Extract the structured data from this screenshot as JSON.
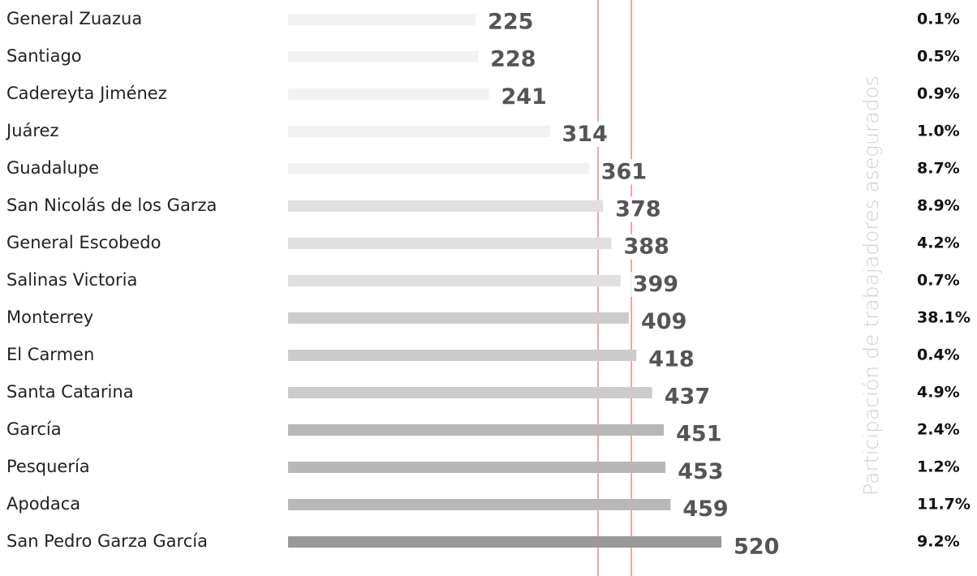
{
  "chart_data": {
    "type": "bar",
    "orientation": "horizontal",
    "categories": [
      "General Zuazua",
      "Santiago",
      "Cadereyta Jiménez",
      "Juárez",
      "Guadalupe",
      "San Nicolás de los Garza",
      "General Escobedo",
      "Salinas Victoria",
      "Monterrey",
      "El Carmen",
      "Santa Catarina",
      "García",
      "Pesquería",
      "Apodaca",
      "San Pedro Garza García"
    ],
    "values": [
      225,
      228,
      241,
      314,
      361,
      378,
      388,
      399,
      409,
      418,
      437,
      451,
      453,
      459,
      520
    ],
    "colors": [
      "#f2f2f2",
      "#f2f2f2",
      "#f2f2f2",
      "#f2f2f2",
      "#f2f2f2",
      "#e0e0e0",
      "#e0e0e0",
      "#e0e0e0",
      "#cccccc",
      "#cccccc",
      "#cccccc",
      "#b8b8b8",
      "#b8b8b8",
      "#b8b8b8",
      "#999999"
    ],
    "reference_lines": [
      372,
      412
    ],
    "reference_color": "#d9534f",
    "share_title": "Participación de trabajadores asegurados",
    "share_values": [
      0.1,
      0.5,
      0.9,
      1.0,
      8.7,
      8.9,
      4.2,
      0.7,
      38.1,
      0.4,
      4.9,
      2.4,
      1.2,
      11.7,
      9.2
    ],
    "share_labels": [
      "0.1%",
      "0.5%",
      "0.9%",
      "1.0%",
      "8.7%",
      "8.9%",
      "4.2%",
      "0.7%",
      "38.1%",
      "0.4%",
      "4.9%",
      "2.4%",
      "1.2%",
      "11.7%",
      "9.2%"
    ]
  }
}
